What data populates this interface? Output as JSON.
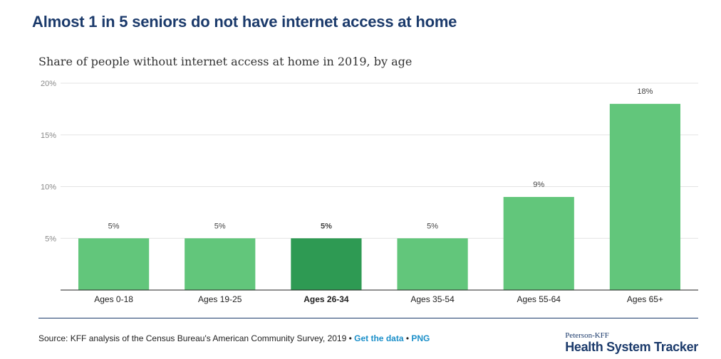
{
  "headline": "Almost 1 in 5 seniors do not have internet access at home",
  "footer": {
    "source_text": "Source: KFF analysis of the Census Bureau's American Community Survey, 2019",
    "separator": " • ",
    "get_data_label": "Get the data",
    "png_label": "PNG"
  },
  "logo": {
    "top": "Peterson-KFF",
    "main": "Health System Tracker"
  },
  "colors": {
    "bar": "#62c67b",
    "bar_highlight": "#2e9a53",
    "headline": "#1b3a6b"
  },
  "chart_data": {
    "type": "bar",
    "title": "Share of people without internet access at home in 2019, by age",
    "categories": [
      "Ages 0-18",
      "Ages 19-25",
      "Ages 26-34",
      "Ages 35-54",
      "Ages 55-64",
      "Ages 65+"
    ],
    "values": [
      5,
      5,
      5,
      5,
      9,
      18
    ],
    "data_labels": [
      "5%",
      "5%",
      "5%",
      "5%",
      "9%",
      "18%"
    ],
    "highlight_index": 2,
    "ylim": [
      0,
      20
    ],
    "yticks": [
      {
        "value": 5,
        "label": "5%"
      },
      {
        "value": 10,
        "label": "10%"
      },
      {
        "value": 15,
        "label": "15%"
      },
      {
        "value": 20,
        "label": "20%"
      }
    ],
    "xlabel": "",
    "ylabel": "",
    "grid": true,
    "legend": "none"
  }
}
